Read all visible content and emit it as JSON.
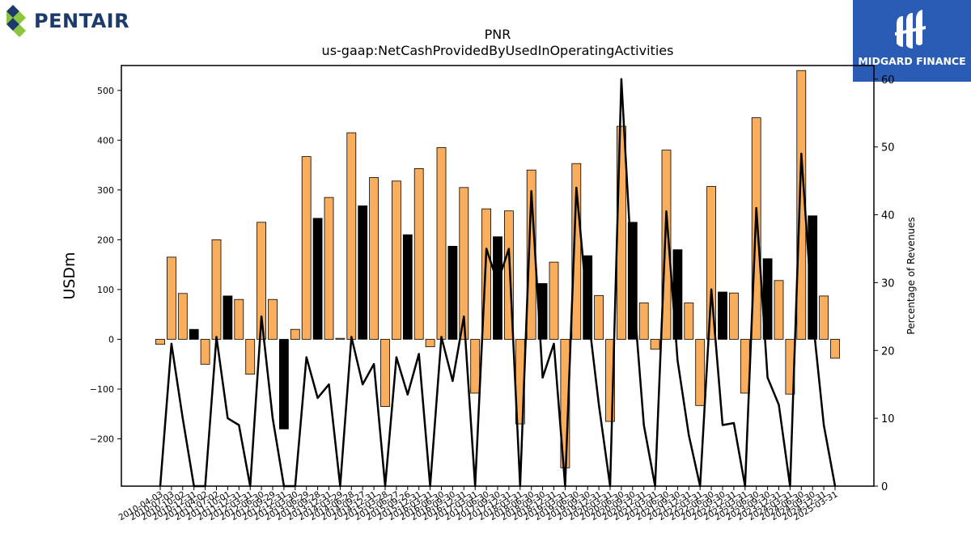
{
  "brand": {
    "name": "PENTAIR",
    "badge": "MIDGARD FINANCE"
  },
  "colors": {
    "bar_positive": "#f8ae5d",
    "bar_black": "#000000",
    "line": "#000000",
    "brand_blue": "#1c3a6b",
    "brand_green": "#8cc63f",
    "badge_bg": "#2b5cb5"
  },
  "chart_data": {
    "type": "bar",
    "title": "PNR",
    "subtitle": "us-gaap:NetCashProvidedByUsedInOperatingActivities",
    "ylabel": "USDm",
    "y2label": "Percentage of Revenues",
    "ylim": [
      -295,
      550
    ],
    "y2lim": [
      0,
      62
    ],
    "yticks": [
      -200,
      -100,
      0,
      100,
      200,
      300,
      400,
      500
    ],
    "y2ticks": [
      0,
      10,
      20,
      30,
      40,
      50,
      60
    ],
    "yticklabels": [
      "−200",
      "−100",
      "0",
      "100",
      "200",
      "300",
      "400",
      "500"
    ],
    "x": [
      "2010-04-03",
      "2010-07-03",
      "2010-10-02",
      "2010-12-31",
      "2011-04-02",
      "2011-07-02",
      "2011-10-01",
      "2011-12-31",
      "2012-03-31",
      "2012-06-30",
      "2012-09-29",
      "2012-12-31",
      "2013-03-30",
      "2013-06-29",
      "2013-09-28",
      "2013-12-31",
      "2014-03-29",
      "2014-06-28",
      "2014-09-27",
      "2014-12-31",
      "2015-03-28",
      "2015-06-27",
      "2015-09-26",
      "2015-12-31",
      "2016-03-31",
      "2016-06-30",
      "2016-09-30",
      "2016-12-31",
      "2017-03-31",
      "2017-06-30",
      "2017-09-30",
      "2017-12-31",
      "2018-03-31",
      "2018-06-30",
      "2018-09-30",
      "2018-12-31",
      "2019-03-31",
      "2019-06-30",
      "2019-09-30",
      "2019-12-31",
      "2020-03-31",
      "2020-06-30",
      "2020-09-30",
      "2020-12-31",
      "2021-03-31",
      "2021-06-30",
      "2021-09-30",
      "2021-12-31",
      "2022-03-31",
      "2022-06-30",
      "2022-09-30",
      "2022-12-31",
      "2023-03-31",
      "2023-06-30",
      "2023-09-30",
      "2023-12-31",
      "2024-03-31",
      "2024-06-30",
      "2024-09-30",
      "2024-12-31",
      "2025-03-31"
    ],
    "series": [
      {
        "kind": "bar",
        "values": [
          -10,
          165,
          92,
          20,
          -50,
          200,
          87,
          80,
          -70,
          235,
          80,
          -180,
          20,
          367,
          243,
          285,
          2,
          415,
          268,
          325,
          -135,
          318,
          210,
          343,
          -15,
          385,
          187,
          305,
          -108,
          262,
          206,
          258,
          -170,
          340,
          112,
          155,
          -258,
          353,
          168,
          88,
          -165,
          428,
          235,
          73,
          -20,
          380,
          180,
          73,
          -133,
          307,
          95,
          93,
          -108,
          445,
          162,
          118,
          -110,
          540,
          248,
          87,
          -38
        ],
        "black_indices": [
          3,
          6,
          11,
          14,
          18,
          22,
          26,
          30,
          34,
          38,
          42,
          46,
          50,
          54,
          58
        ]
      },
      {
        "kind": "line",
        "axis": "right",
        "values": [
          0,
          21,
          10,
          0,
          0,
          22,
          10,
          9,
          0,
          25,
          10,
          0,
          0,
          19,
          13,
          15,
          0,
          22,
          15,
          18,
          0,
          19,
          13.5,
          19.5,
          0,
          22,
          15.5,
          25,
          0,
          35,
          30,
          35,
          0,
          43.5,
          16,
          21,
          0,
          44,
          26,
          12,
          0,
          60,
          30,
          9,
          0,
          40.5,
          18.5,
          7.5,
          0,
          29,
          9,
          9.3,
          0,
          41,
          16,
          12,
          0,
          49,
          25,
          9,
          0
        ]
      }
    ]
  }
}
